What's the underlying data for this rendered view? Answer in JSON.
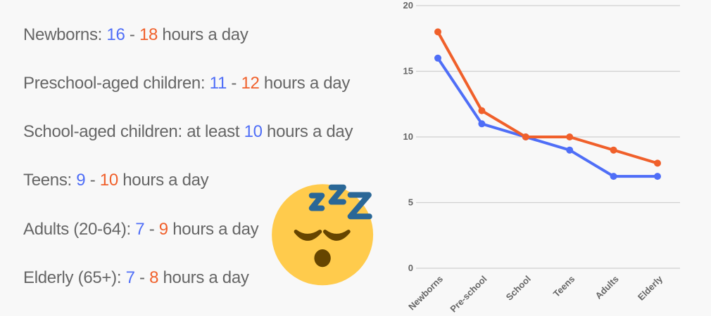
{
  "facts": [
    {
      "label": "Newborns: ",
      "low": "16",
      "sep": " - ",
      "high": "18",
      "suffix": " hours a day"
    },
    {
      "label": "Preschool-aged children: ",
      "low": "11",
      "sep": " - ",
      "high": "12",
      "suffix": " hours a day"
    },
    {
      "label": "School-aged children: at least ",
      "low": "10",
      "sep": "",
      "high": "",
      "suffix": " hours a day"
    },
    {
      "label": "Teens: ",
      "low": "9",
      "sep": " - ",
      "high": "10",
      "suffix": " hours a day"
    },
    {
      "label": "Adults (20-64): ",
      "low": "7",
      "sep": " - ",
      "high": "9",
      "suffix": " hours a day"
    },
    {
      "label": "Elderly (65+): ",
      "low": "7",
      "sep": " - ",
      "high": "8",
      "suffix": " hours a day"
    }
  ],
  "emoji": {
    "icon": "sleeping-face-icon",
    "text": "zzZ"
  },
  "colors": {
    "low": "#4f6ef7",
    "high": "#f0602b",
    "text": "#666666"
  },
  "chart_data": {
    "type": "line",
    "title": "",
    "xlabel": "",
    "ylabel": "",
    "categories": [
      "Newborns",
      "Pre-school",
      "School",
      "Teens",
      "Adults",
      "Elderly"
    ],
    "series": [
      {
        "color": "#4f6ef7",
        "values": [
          16,
          11,
          10,
          9,
          7,
          7
        ]
      },
      {
        "color": "#f0602b",
        "values": [
          18,
          12,
          10,
          10,
          9,
          8
        ]
      }
    ],
    "ylim": [
      0,
      20
    ],
    "yticks": [
      0,
      5,
      10,
      15,
      20
    ],
    "grid": true,
    "legend": "none"
  }
}
